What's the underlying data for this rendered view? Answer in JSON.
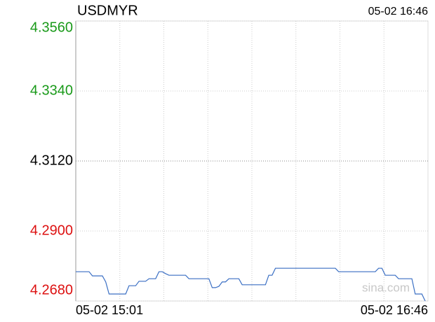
{
  "chart_data": {
    "type": "line",
    "title": "USDMYR",
    "updated": "05-02 16:46",
    "watermark": "sina.com",
    "categories": [
      "05-02 15:01",
      null,
      null,
      null,
      null,
      null,
      null,
      null,
      null,
      null,
      null,
      null,
      null,
      null,
      null,
      null,
      null,
      null,
      null,
      null,
      null,
      null,
      null,
      null,
      null,
      null,
      null,
      null,
      null,
      null,
      null,
      null,
      null,
      null,
      null,
      null,
      null,
      null,
      null,
      null,
      null,
      null,
      null,
      null,
      null,
      null,
      null,
      null,
      null,
      null,
      null,
      null,
      null,
      null,
      null,
      null,
      null,
      null,
      null,
      null,
      null,
      null,
      null,
      null,
      null,
      null,
      null,
      null,
      null,
      null,
      null,
      null,
      null,
      null,
      null,
      null,
      null,
      null,
      null,
      null,
      null,
      null,
      null,
      null,
      null,
      null,
      null,
      null,
      null,
      null,
      null,
      null,
      null,
      null,
      null,
      null,
      null,
      null,
      null,
      null,
      null,
      null,
      null,
      null,
      null,
      "05-02 16:46"
    ],
    "series": [
      {
        "name": "USDMYR",
        "color": "#3a6fc4",
        "values": [
          4.2772,
          4.2772,
          4.2772,
          4.2772,
          4.2772,
          4.2759,
          4.2759,
          4.2759,
          4.2759,
          4.274,
          4.2702,
          4.2702,
          4.2702,
          4.2702,
          4.2702,
          4.2702,
          4.2728,
          4.2728,
          4.2728,
          4.2742,
          4.2742,
          4.2742,
          4.275,
          4.275,
          4.275,
          4.2772,
          4.2772,
          4.2766,
          4.2761,
          4.2761,
          4.2761,
          4.2761,
          4.2761,
          4.2761,
          4.275,
          4.275,
          4.275,
          4.275,
          4.275,
          4.275,
          4.275,
          4.2722,
          4.2722,
          4.2726,
          4.274,
          4.274,
          4.275,
          4.275,
          4.275,
          4.275,
          4.2731,
          4.2731,
          4.2731,
          4.2731,
          4.2731,
          4.2731,
          4.2731,
          4.2731,
          4.2761,
          4.2761,
          4.2783,
          4.2783,
          4.2783,
          4.2783,
          4.2783,
          4.2783,
          4.2783,
          4.2783,
          4.2783,
          4.2783,
          4.2783,
          4.2783,
          4.2783,
          4.2783,
          4.2783,
          4.2783,
          4.2783,
          4.2783,
          4.2783,
          4.2772,
          4.2772,
          4.2772,
          4.2772,
          4.2772,
          4.2772,
          4.2772,
          4.2772,
          4.2772,
          4.2772,
          4.2772,
          4.2772,
          4.2783,
          4.2783,
          4.2761,
          4.2761,
          4.2761,
          4.2761,
          4.275,
          4.275,
          4.275,
          4.275,
          4.275,
          4.2702,
          4.2702,
          4.2702,
          4.268
        ]
      }
    ],
    "ylim": [
      4.268,
      4.356
    ],
    "yticks": [
      {
        "value": 4.356,
        "label": "4.3560"
      },
      {
        "value": 4.334,
        "label": "4.3340"
      },
      {
        "value": 4.312,
        "label": "4.3120"
      },
      {
        "value": 4.29,
        "label": "4.2900"
      },
      {
        "value": 4.268,
        "label": "4.2680"
      }
    ],
    "ytick_colors": [
      "#1a9a1a",
      "#1a9a1a",
      "#000000",
      "#dd1111",
      "#dd1111"
    ],
    "grid": true
  }
}
